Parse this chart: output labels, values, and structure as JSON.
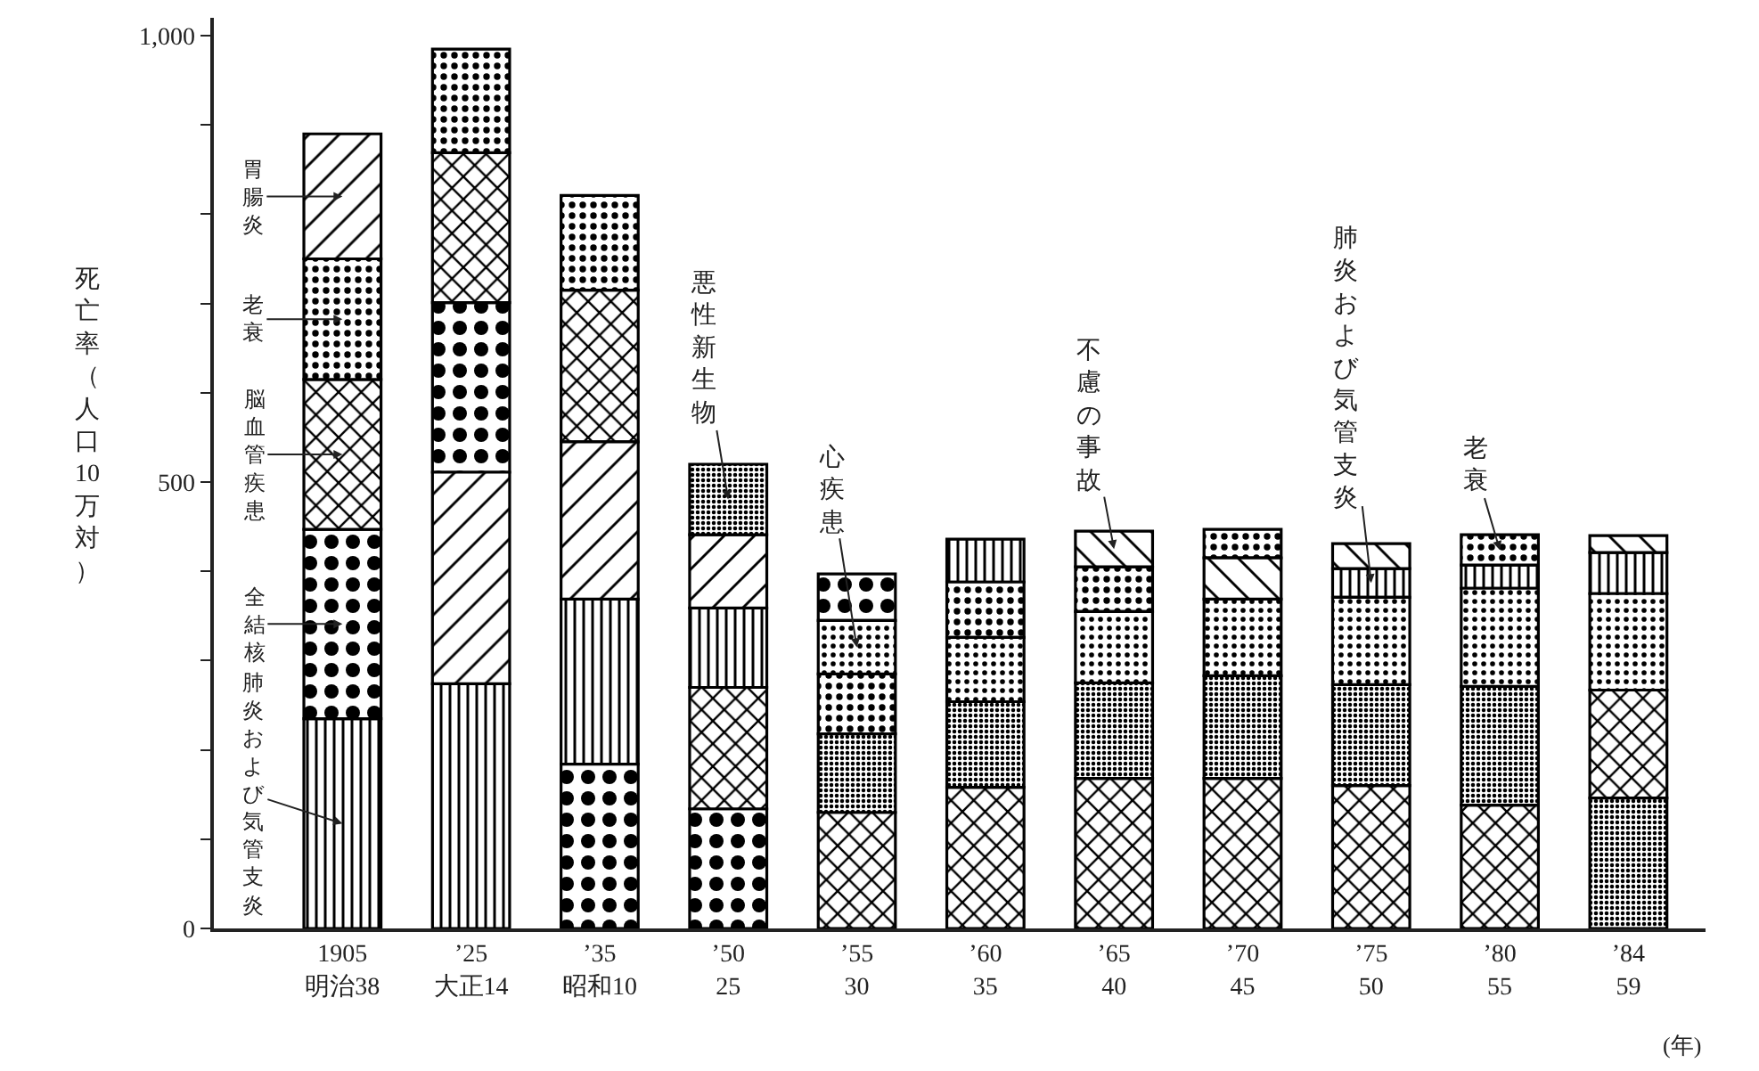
{
  "chart_data": {
    "type": "bar",
    "categories": [
      "1905\n明治38",
      "’25\n大正14",
      "’35\n昭和10",
      "’50\n25",
      "’55\n30",
      "’60\n35",
      "’65\n40",
      "’70\n45",
      "’75\n50",
      "’80\n55",
      "’84\n59"
    ],
    "series": [
      {
        "name": "肺炎および気管支炎",
        "color": "#000000",
        "base": [
          0,
          0,
          184,
          270,
          null,
          388,
          null,
          null,
          371,
          381,
          375
        ],
        "values": [
          235,
          274,
          185,
          89,
          null,
          48,
          null,
          null,
          32,
          26,
          46
        ]
      },
      {
        "name": "全結核",
        "color": "#000000",
        "base": [
          235,
          511,
          0,
          0,
          345,
          null,
          null,
          null,
          null,
          null,
          null
        ],
        "values": [
          212,
          190,
          184,
          134,
          52,
          null,
          null,
          null,
          null,
          null,
          null
        ]
      },
      {
        "name": "脳血管疾患",
        "color": "#000000",
        "base": [
          447,
          701,
          545,
          134,
          0,
          0,
          0,
          0,
          0,
          0,
          146
        ],
        "values": [
          168,
          168,
          170,
          136,
          130,
          158,
          168,
          168,
          160,
          138,
          121
        ]
      },
      {
        "name": "老衰",
        "color": "#000000",
        "base": [
          615,
          869,
          715,
          null,
          218,
          326,
          355,
          415,
          null,
          407,
          null
        ],
        "values": [
          135,
          116,
          106,
          null,
          67,
          62,
          50,
          32,
          null,
          34,
          null
        ]
      },
      {
        "name": "胃腸炎",
        "color": "#000000",
        "base": [
          750,
          274,
          369,
          359,
          null,
          null,
          null,
          null,
          null,
          null,
          null
        ],
        "values": [
          140,
          237,
          176,
          82,
          null,
          null,
          null,
          null,
          null,
          null,
          null
        ]
      },
      {
        "name": "悪性新生物",
        "color": "#000000",
        "base": [
          null,
          null,
          null,
          441,
          130,
          158,
          168,
          168,
          160,
          138,
          0
        ],
        "values": [
          null,
          null,
          null,
          79,
          88,
          96,
          107,
          115,
          113,
          133,
          146
        ]
      },
      {
        "name": "心疾患",
        "color": "#000000",
        "base": [
          null,
          null,
          null,
          null,
          285,
          254,
          275,
          283,
          273,
          271,
          267
        ],
        "values": [
          null,
          null,
          null,
          null,
          60,
          72,
          80,
          86,
          98,
          110,
          108
        ]
      },
      {
        "name": "不慮の事故",
        "color": "#000000",
        "base": [
          null,
          null,
          null,
          null,
          null,
          null,
          405,
          369,
          403,
          null,
          421
        ],
        "values": [
          null,
          null,
          null,
          null,
          null,
          null,
          40,
          46,
          28,
          null,
          19
        ]
      }
    ],
    "ylabel": "死亡率（人口10万対）",
    "xlabel": "(年)",
    "ylim": [
      0,
      1020
    ],
    "yticks": [
      0,
      {
        "value": 100,
        "label": null
      },
      {
        "value": 200,
        "label": null
      },
      {
        "value": 300,
        "label": null
      },
      {
        "value": 400,
        "label": null
      },
      500,
      {
        "value": 600,
        "label": null
      },
      {
        "value": 700,
        "label": null
      },
      {
        "value": 800,
        "label": null
      },
      {
        "value": 900,
        "label": null
      },
      {
        "value": 1000,
        "label": "1,000"
      }
    ],
    "legend": false
  }
}
